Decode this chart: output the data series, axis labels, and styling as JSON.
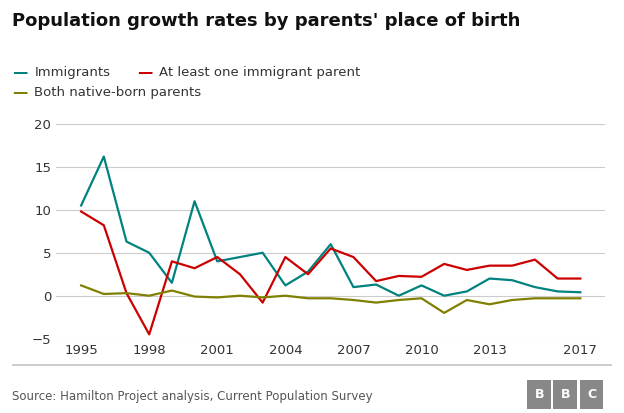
{
  "title": "Population growth rates by parents' place of birth",
  "source": "Source: Hamilton Project analysis, Current Population Survey",
  "years": [
    1995,
    1996,
    1997,
    1998,
    1999,
    2000,
    2001,
    2002,
    2003,
    2004,
    2005,
    2006,
    2007,
    2008,
    2009,
    2010,
    2011,
    2012,
    2013,
    2014,
    2015,
    2016,
    2017
  ],
  "immigrants": [
    10.5,
    16.2,
    6.3,
    5.0,
    1.5,
    11.0,
    4.0,
    4.5,
    5.0,
    1.2,
    2.8,
    6.0,
    1.0,
    1.3,
    0.0,
    1.2,
    0.0,
    0.5,
    2.0,
    1.8,
    1.0,
    0.5,
    0.4
  ],
  "at_least_one": [
    9.8,
    8.2,
    0.3,
    -4.5,
    4.0,
    3.2,
    4.5,
    2.5,
    -0.8,
    4.5,
    2.5,
    5.5,
    4.5,
    1.7,
    2.3,
    2.2,
    3.7,
    3.0,
    3.5,
    3.5,
    4.2,
    2.0,
    2.0
  ],
  "both_native": [
    1.2,
    0.2,
    0.3,
    0.0,
    0.6,
    -0.1,
    -0.2,
    0.0,
    -0.2,
    0.0,
    -0.3,
    -0.3,
    -0.5,
    -0.8,
    -0.5,
    -0.3,
    -2.0,
    -0.5,
    -1.0,
    -0.5,
    -0.3,
    -0.3,
    -0.3
  ],
  "immigrants_color": "#00827f",
  "at_least_one_color": "#cc0000",
  "both_native_color": "#808000",
  "ylim": [
    -5,
    20
  ],
  "yticks": [
    -5,
    0,
    5,
    10,
    15,
    20
  ],
  "xticks": [
    1995,
    1998,
    2001,
    2004,
    2007,
    2010,
    2013,
    2017
  ],
  "bg_color": "#ffffff",
  "grid_color": "#cccccc",
  "title_fontsize": 13,
  "legend_fontsize": 9.5,
  "tick_fontsize": 9.5,
  "source_fontsize": 8.5,
  "line_width": 1.6,
  "legend_labels": [
    "Immigrants",
    "At least one immigrant parent",
    "Both native-born parents"
  ]
}
